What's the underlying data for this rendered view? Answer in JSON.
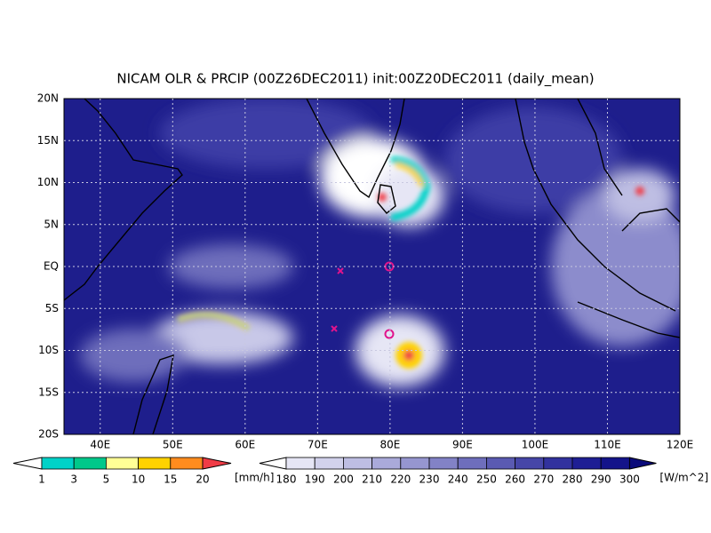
{
  "title": "NICAM OLR & PRCIP (00Z26DEC2011) init:00Z20DEC2011 (daily_mean)",
  "lat_labels": [
    "20N",
    "15N",
    "10N",
    "5N",
    "EQ",
    "5S",
    "10S",
    "15S",
    "20S"
  ],
  "lon_labels": [
    "40E",
    "50E",
    "60E",
    "70E",
    "80E",
    "90E",
    "100E",
    "110E",
    "120E"
  ],
  "precip_colorbar": {
    "levels": [
      1,
      3,
      5,
      10,
      15,
      20
    ],
    "unit": "[mm/h]",
    "under_color": "#ffffff",
    "colors": [
      "#00d2c8",
      "#00c88a",
      "#ffff96",
      "#ffd200",
      "#ff8c1e"
    ],
    "over_color": "#f03c46"
  },
  "olr_colorbar": {
    "levels": [
      180,
      190,
      200,
      210,
      220,
      230,
      240,
      250,
      260,
      270,
      280,
      290,
      300
    ],
    "unit": "[W/m^2]",
    "under_color": "#ffffff",
    "colors": [
      "#e6e6f5",
      "#d2d2ec",
      "#bebee3",
      "#aaaada",
      "#9696d0",
      "#8282c6",
      "#6e6ebc",
      "#5a5ab2",
      "#4646a8",
      "#32329e",
      "#1e1e94",
      "#14148a"
    ],
    "over_color": "#0a0a7a"
  }
}
